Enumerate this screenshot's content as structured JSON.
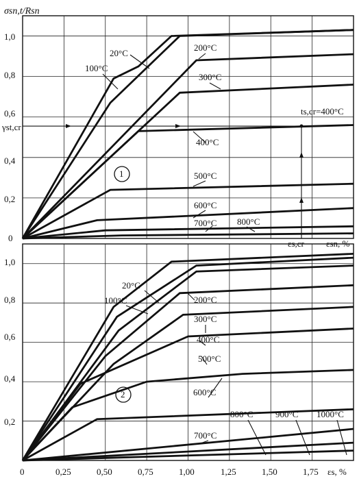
{
  "chart_data": [
    {
      "type": "line",
      "panel_id": "1",
      "ylabel": "σsn,t/Rsn",
      "xlabel": "εsn, %",
      "yticks": [
        "0",
        "0,2",
        "0,4",
        "0,6",
        "0,8",
        "1,0"
      ],
      "ylim": [
        0,
        1.1
      ],
      "xlim": [
        0,
        2.0
      ],
      "grid": true,
      "annotation_gamma": "γst,cr",
      "annotation_t": "ts,cr=400°C",
      "annotation_eps": "εs,cr",
      "series": [
        {
          "name": "20°C",
          "x": [
            0,
            0.55,
            0.7,
            0.9,
            2.0
          ],
          "y": [
            0,
            0.79,
            0.85,
            1.0,
            1.03
          ]
        },
        {
          "name": "100°C",
          "x": [
            0,
            0.53,
            0.95,
            2.0
          ],
          "y": [
            0,
            0.67,
            1.0,
            1.03
          ]
        },
        {
          "name": "200°C",
          "x": [
            0,
            1.05,
            2.0
          ],
          "y": [
            0,
            0.88,
            0.91
          ]
        },
        {
          "name": "300°C",
          "x": [
            0,
            0.95,
            2.0
          ],
          "y": [
            0,
            0.72,
            0.76
          ]
        },
        {
          "name": "400°C",
          "x": [
            0,
            0.7,
            2.0
          ],
          "y": [
            0,
            0.53,
            0.56
          ]
        },
        {
          "name": "500°C",
          "x": [
            0,
            0.53,
            2.0
          ],
          "y": [
            0,
            0.24,
            0.27
          ]
        },
        {
          "name": "600°C",
          "x": [
            0,
            0.45,
            2.0
          ],
          "y": [
            0,
            0.09,
            0.15
          ]
        },
        {
          "name": "700°C",
          "x": [
            0,
            0.5,
            2.0
          ],
          "y": [
            0,
            0.04,
            0.06
          ]
        },
        {
          "name": "800°C",
          "x": [
            0,
            0.6,
            2.0
          ],
          "y": [
            0,
            0.015,
            0.025
          ]
        }
      ]
    },
    {
      "type": "line",
      "panel_id": "2",
      "xlabel": "εs, %",
      "xticks": [
        "0",
        "0,25",
        "0,50",
        "0,75",
        "1,00",
        "1,25",
        "1,50",
        "1,75"
      ],
      "yticks": [
        "0,2",
        "0,4",
        "0,6",
        "0,8",
        "1,0"
      ],
      "ylim": [
        0,
        1.1
      ],
      "xlim": [
        0,
        2.0
      ],
      "grid": true,
      "series": [
        {
          "name": "20°C",
          "x": [
            0,
            0.55,
            0.9,
            2.0
          ],
          "y": [
            0,
            0.78,
            1.01,
            1.05
          ]
        },
        {
          "name": "100°C",
          "x": [
            0,
            0.57,
            1.05,
            2.0
          ],
          "y": [
            0,
            0.73,
            0.99,
            1.03
          ]
        },
        {
          "name": "200°C",
          "x": [
            0,
            0.58,
            1.05,
            2.0
          ],
          "y": [
            0,
            0.66,
            0.96,
            0.99
          ]
        },
        {
          "name": "300°C",
          "x": [
            0,
            0.5,
            0.95,
            2.0
          ],
          "y": [
            0,
            0.53,
            0.85,
            0.89
          ]
        },
        {
          "name": "400°C",
          "x": [
            0,
            0.55,
            0.97,
            2.0
          ],
          "y": [
            0,
            0.49,
            0.74,
            0.78
          ]
        },
        {
          "name": "500°C",
          "x": [
            0,
            0.35,
            1.0,
            2.0
          ],
          "y": [
            0,
            0.39,
            0.63,
            0.67
          ]
        },
        {
          "name": "600°C",
          "x": [
            0,
            0.3,
            0.75,
            1.33,
            2.0
          ],
          "y": [
            0,
            0.27,
            0.4,
            0.44,
            0.46
          ]
        },
        {
          "name": "700°C",
          "x": [
            0,
            0.45,
            2.0
          ],
          "y": [
            0,
            0.21,
            0.26
          ]
        },
        {
          "name": "800°C",
          "x": [
            0,
            2.0
          ],
          "y": [
            0,
            0.16
          ]
        },
        {
          "name": "900°C",
          "x": [
            0,
            2.0
          ],
          "y": [
            0,
            0.09
          ]
        },
        {
          "name": "1000°C",
          "x": [
            0,
            2.0
          ],
          "y": [
            0,
            0.05
          ]
        }
      ]
    }
  ]
}
